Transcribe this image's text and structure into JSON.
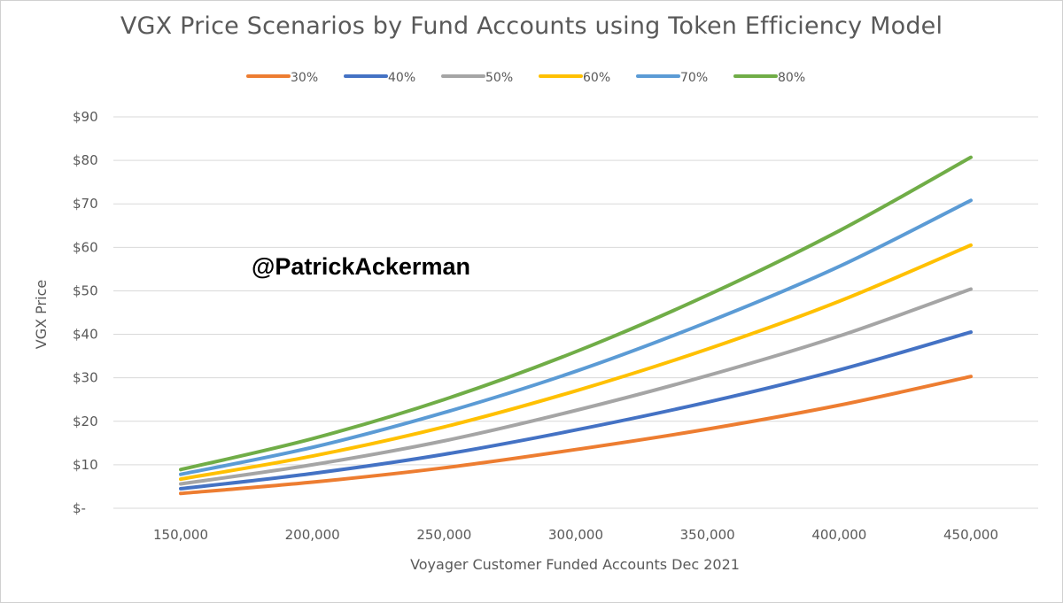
{
  "chart_data": {
    "type": "line",
    "title": "VGX Price Scenarios by Fund Accounts using Token Efficiency Model",
    "xlabel": "Voyager Customer Funded Accounts Dec 2021",
    "ylabel": "VGX Price",
    "x": [
      150000,
      200000,
      250000,
      300000,
      350000,
      400000,
      450000
    ],
    "x_tick_labels": [
      "150,000",
      "200,000",
      "250,000",
      "300,000",
      "350,000",
      "400,000",
      "450,000"
    ],
    "ylim": [
      0,
      90
    ],
    "y_ticks": [
      0,
      10,
      20,
      30,
      40,
      50,
      60,
      70,
      80,
      90
    ],
    "y_tick_labels": [
      "$-",
      "$10",
      "$20",
      "$30",
      "$40",
      "$50",
      "$60",
      "$70",
      "$80",
      "$90"
    ],
    "grid": true,
    "legend_position": "top",
    "series": [
      {
        "name": "30%",
        "color": "#ed7d31",
        "values": [
          3.4,
          6.0,
          9.3,
          13.5,
          18.2,
          23.7,
          30.3
        ]
      },
      {
        "name": "40%",
        "color": "#4472c4",
        "values": [
          4.5,
          8.0,
          12.4,
          18.0,
          24.4,
          31.8,
          40.5
        ]
      },
      {
        "name": "50%",
        "color": "#a5a5a5",
        "values": [
          5.6,
          10.0,
          15.5,
          22.5,
          30.5,
          39.6,
          50.4
        ]
      },
      {
        "name": "60%",
        "color": "#ffc000",
        "values": [
          6.7,
          12.0,
          18.7,
          27.0,
          36.6,
          47.6,
          60.5
        ]
      },
      {
        "name": "70%",
        "color": "#5b9bd5",
        "values": [
          7.8,
          14.0,
          22.0,
          31.5,
          42.8,
          55.6,
          70.8
        ]
      },
      {
        "name": "80%",
        "color": "#70ad47",
        "values": [
          8.9,
          16.0,
          25.0,
          36.0,
          49.0,
          63.8,
          80.7
        ]
      }
    ]
  },
  "watermark": "@PatrickAckerman"
}
